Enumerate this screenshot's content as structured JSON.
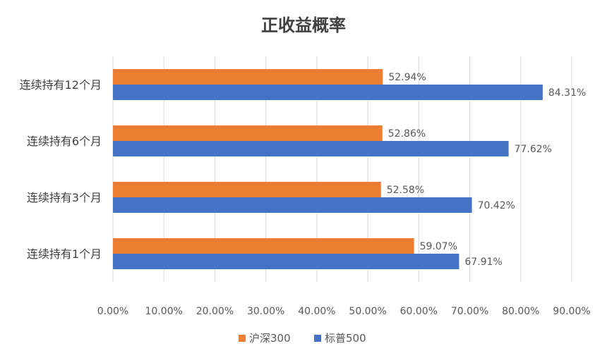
{
  "chart_data": {
    "type": "bar",
    "orientation": "horizontal",
    "title": "正收益概率",
    "categories": [
      "连续持有12个月",
      "连续持有6个月",
      "连续持有3个月",
      "连续持有1个月"
    ],
    "series": [
      {
        "name": "沪深300",
        "color": "#ED7D31",
        "values": [
          52.94,
          52.86,
          52.58,
          59.07
        ]
      },
      {
        "name": "标普500",
        "color": "#4472C4",
        "values": [
          84.31,
          77.62,
          70.42,
          67.91
        ]
      }
    ],
    "value_axis": {
      "min": 0,
      "max": 90,
      "ticks": [
        "0.00%",
        "10.00%",
        "20.00%",
        "30.00%",
        "40.00%",
        "50.00%",
        "60.00%",
        "70.00%",
        "80.00%",
        "90.00%"
      ]
    },
    "data_labels": [
      [
        "52.94%",
        "52.86%",
        "52.58%",
        "59.07%"
      ],
      [
        "84.31%",
        "77.62%",
        "70.42%",
        "67.91%"
      ]
    ],
    "grid": true,
    "legend": "bottom"
  }
}
